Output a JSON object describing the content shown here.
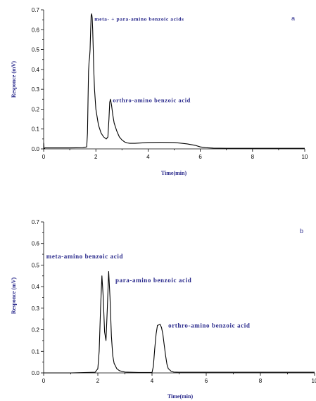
{
  "chart_data": [
    {
      "type": "line",
      "panel_label": "a",
      "xlabel": "Time(min)",
      "ylabel": "Responce (mV)",
      "xlim": [
        0,
        10
      ],
      "ylim": [
        0,
        0.7
      ],
      "x_ticks": [
        "0",
        "2",
        "4",
        "6",
        "8",
        "10"
      ],
      "y_ticks": [
        "0.0",
        "0.1",
        "0.2",
        "0.3",
        "0.4",
        "0.5",
        "0.6",
        "0.7"
      ],
      "grid": false,
      "series": [
        {
          "x": [
            0,
            0.02,
            0.05,
            0.1,
            0.5,
            1.0,
            1.5,
            1.65,
            1.68,
            1.7,
            1.72,
            1.74,
            1.76,
            1.78,
            1.8,
            1.82,
            1.84,
            1.86,
            1.88,
            1.9,
            1.92,
            1.95,
            2.0,
            2.1,
            2.2,
            2.3,
            2.4,
            2.46,
            2.5,
            2.53,
            2.56,
            2.6,
            2.65,
            2.7,
            2.8,
            2.9,
            3.0,
            3.1,
            3.2,
            3.3,
            3.5,
            4.0,
            4.5,
            5.0,
            5.5,
            5.8,
            6.0,
            6.2,
            6.5,
            7.0,
            8.0,
            9.0,
            10.0
          ],
          "y": [
            0.03,
            0.0,
            0.005,
            0.005,
            0.005,
            0.005,
            0.006,
            0.01,
            0.08,
            0.25,
            0.39,
            0.44,
            0.46,
            0.5,
            0.6,
            0.67,
            0.68,
            0.66,
            0.6,
            0.5,
            0.4,
            0.3,
            0.2,
            0.12,
            0.08,
            0.06,
            0.05,
            0.06,
            0.15,
            0.235,
            0.25,
            0.22,
            0.17,
            0.13,
            0.09,
            0.06,
            0.045,
            0.035,
            0.03,
            0.028,
            0.028,
            0.032,
            0.033,
            0.032,
            0.025,
            0.018,
            0.01,
            0.006,
            0.004,
            0.003,
            0.003,
            0.003,
            0.003
          ]
        }
      ],
      "annotations": [
        {
          "text": "meta- + para-amino benzoic acids",
          "x": 1.95,
          "y": 0.645
        },
        {
          "text": "orthro-amino benzoic acid",
          "x": 2.65,
          "y": 0.235
        }
      ]
    },
    {
      "type": "line",
      "panel_label": "b",
      "xlabel": "Time(min)",
      "ylabel": "Responce (mV)",
      "xlim": [
        0,
        10
      ],
      "ylim": [
        0,
        0.7
      ],
      "x_ticks": [
        "0",
        "2",
        "4",
        "6",
        "8",
        "10"
      ],
      "y_ticks": [
        "0.0",
        "0.1",
        "0.2",
        "0.3",
        "0.4",
        "0.5",
        "0.6",
        "0.7"
      ],
      "grid": false,
      "series": [
        {
          "x": [
            0,
            1.0,
            1.9,
            2.0,
            2.05,
            2.1,
            2.15,
            2.2,
            2.25,
            2.3,
            2.35,
            2.4,
            2.45,
            2.5,
            2.55,
            2.6,
            2.7,
            2.8,
            3.0,
            3.5,
            4.0,
            4.05,
            4.1,
            4.15,
            4.2,
            4.3,
            4.35,
            4.4,
            4.45,
            4.5,
            4.55,
            4.6,
            4.7,
            4.8,
            5.0,
            6.0,
            7.0,
            8.0,
            9.0,
            10.0
          ],
          "y": [
            0.0,
            0.0,
            0.003,
            0.02,
            0.1,
            0.3,
            0.45,
            0.35,
            0.19,
            0.15,
            0.3,
            0.47,
            0.35,
            0.17,
            0.08,
            0.045,
            0.02,
            0.01,
            0.004,
            0.002,
            0.002,
            0.03,
            0.11,
            0.18,
            0.22,
            0.225,
            0.21,
            0.18,
            0.13,
            0.08,
            0.04,
            0.02,
            0.008,
            0.004,
            0.003,
            0.003,
            0.003,
            0.003,
            0.003,
            0.003
          ]
        }
      ],
      "annotations": [
        {
          "text": "meta-amino benzoic acid",
          "x": 0.1,
          "y": 0.53
        },
        {
          "text": "para-amino benzoic acid",
          "x": 2.65,
          "y": 0.42
        },
        {
          "text": "orthro-amino benzoic acid",
          "x": 4.6,
          "y": 0.21
        }
      ]
    }
  ]
}
